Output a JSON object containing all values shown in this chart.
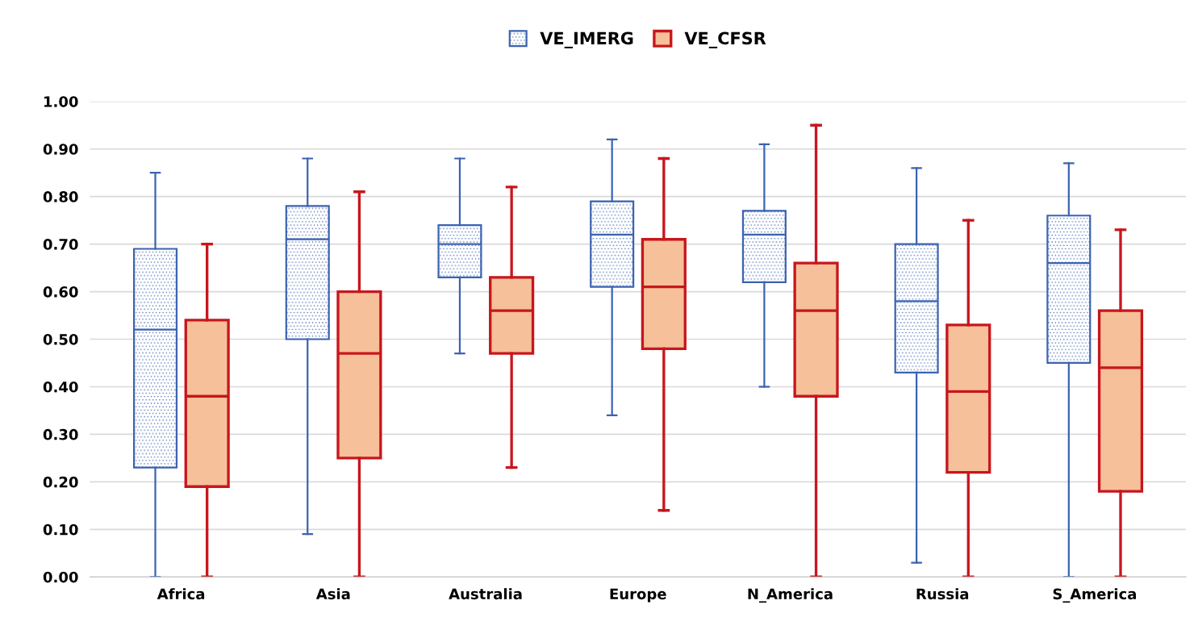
{
  "chart_data": {
    "type": "box",
    "categories": [
      "Africa",
      "Asia",
      "Australia",
      "Europe",
      "N_America",
      "Russia",
      "S_America"
    ],
    "series": [
      {
        "name": "VE_IMERG",
        "color": "#3b63b0",
        "boxes": [
          {
            "low": 0.0,
            "q1": 0.23,
            "median": 0.52,
            "q3": 0.69,
            "high": 0.85
          },
          {
            "low": 0.09,
            "q1": 0.5,
            "median": 0.71,
            "q3": 0.78,
            "high": 0.88
          },
          {
            "low": 0.47,
            "q1": 0.63,
            "median": 0.7,
            "q3": 0.74,
            "high": 0.88
          },
          {
            "low": 0.34,
            "q1": 0.61,
            "median": 0.72,
            "q3": 0.79,
            "high": 0.92
          },
          {
            "low": 0.4,
            "q1": 0.62,
            "median": 0.72,
            "q3": 0.77,
            "high": 0.91
          },
          {
            "low": 0.03,
            "q1": 0.43,
            "median": 0.58,
            "q3": 0.7,
            "high": 0.86
          },
          {
            "low": 0.0,
            "q1": 0.45,
            "median": 0.66,
            "q3": 0.76,
            "high": 0.87
          }
        ]
      },
      {
        "name": "VE_CFSR",
        "color": "#c8161d",
        "boxes": [
          {
            "low": 0.0,
            "q1": 0.19,
            "median": 0.38,
            "q3": 0.54,
            "high": 0.7
          },
          {
            "low": 0.0,
            "q1": 0.25,
            "median": 0.47,
            "q3": 0.6,
            "high": 0.81
          },
          {
            "low": 0.23,
            "q1": 0.47,
            "median": 0.56,
            "q3": 0.63,
            "high": 0.82
          },
          {
            "low": 0.14,
            "q1": 0.48,
            "median": 0.61,
            "q3": 0.71,
            "high": 0.88
          },
          {
            "low": 0.0,
            "q1": 0.38,
            "median": 0.56,
            "q3": 0.66,
            "high": 0.95
          },
          {
            "low": 0.0,
            "q1": 0.22,
            "median": 0.39,
            "q3": 0.53,
            "high": 0.75
          },
          {
            "low": 0.0,
            "q1": 0.18,
            "median": 0.44,
            "q3": 0.56,
            "high": 0.73
          }
        ]
      }
    ],
    "ylim": [
      0,
      1
    ],
    "yticks": [
      {
        "value": 0,
        "label": "0.00"
      },
      {
        "value": 0.1,
        "label": "0.10"
      },
      {
        "value": 0.2,
        "label": "0.20"
      },
      {
        "value": 0.3,
        "label": "0.30"
      },
      {
        "value": 0.4,
        "label": "0.40"
      },
      {
        "value": 0.5,
        "label": "0.50"
      },
      {
        "value": 0.6,
        "label": "0.60"
      },
      {
        "value": 0.7,
        "label": "0.70"
      },
      {
        "value": 0.8,
        "label": "0.80"
      },
      {
        "value": 0.9,
        "label": "0.90"
      },
      {
        "value": 1,
        "label": "1.00"
      }
    ],
    "grid": "y",
    "legend": "top"
  }
}
